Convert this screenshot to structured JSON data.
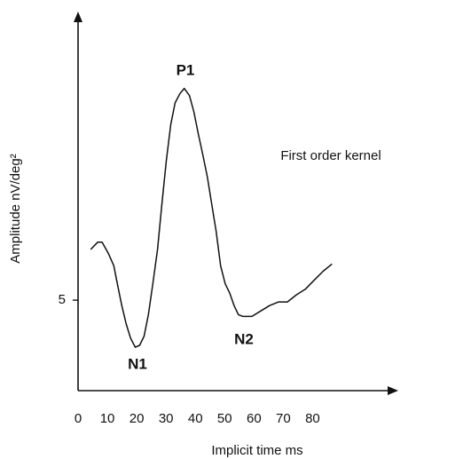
{
  "chart_data": {
    "type": "line",
    "x_label": "Implicit time ms",
    "y_label": "Amplitude nV/deg²",
    "series": [
      {
        "name": "First order kernel",
        "color": "#111111",
        "x": [
          4.3,
          6.7,
          8.2,
          10.3,
          12.2,
          13.4,
          14.9,
          16.4,
          17.9,
          19.5,
          21.0,
          22.5,
          24.0,
          25.5,
          27.1,
          28.6,
          30.1,
          31.6,
          33.1,
          34.7,
          36.2,
          38.0,
          39.5,
          41.0,
          42.6,
          44.1,
          45.6,
          47.1,
          48.6,
          50.2,
          51.7,
          53.2,
          54.7,
          56.2,
          59.3,
          62.3,
          65.3,
          68.4,
          71.4,
          74.5,
          77.5,
          80.5,
          83.6,
          86.6
        ],
        "values": [
          7.8,
          8.2,
          8.2,
          7.6,
          6.9,
          5.9,
          4.7,
          3.7,
          2.9,
          2.4,
          2.5,
          3.0,
          4.2,
          5.9,
          7.8,
          10.3,
          12.7,
          14.7,
          15.9,
          16.4,
          16.7,
          16.3,
          15.4,
          14.2,
          13.0,
          11.8,
          10.3,
          8.8,
          6.9,
          5.9,
          5.4,
          4.7,
          4.2,
          4.1,
          4.1,
          4.4,
          4.7,
          4.9,
          4.9,
          5.3,
          5.6,
          6.1,
          6.6,
          7.0
        ]
      }
    ],
    "annotations": [
      "P1",
      "N1",
      "N2"
    ],
    "xlim": [
      0,
      108
    ],
    "xticks": [
      0,
      10,
      20,
      30,
      40,
      50,
      60,
      70,
      80
    ],
    "ylim": [
      0,
      20.8
    ],
    "yticks": [
      5
    ],
    "grid": false
  }
}
